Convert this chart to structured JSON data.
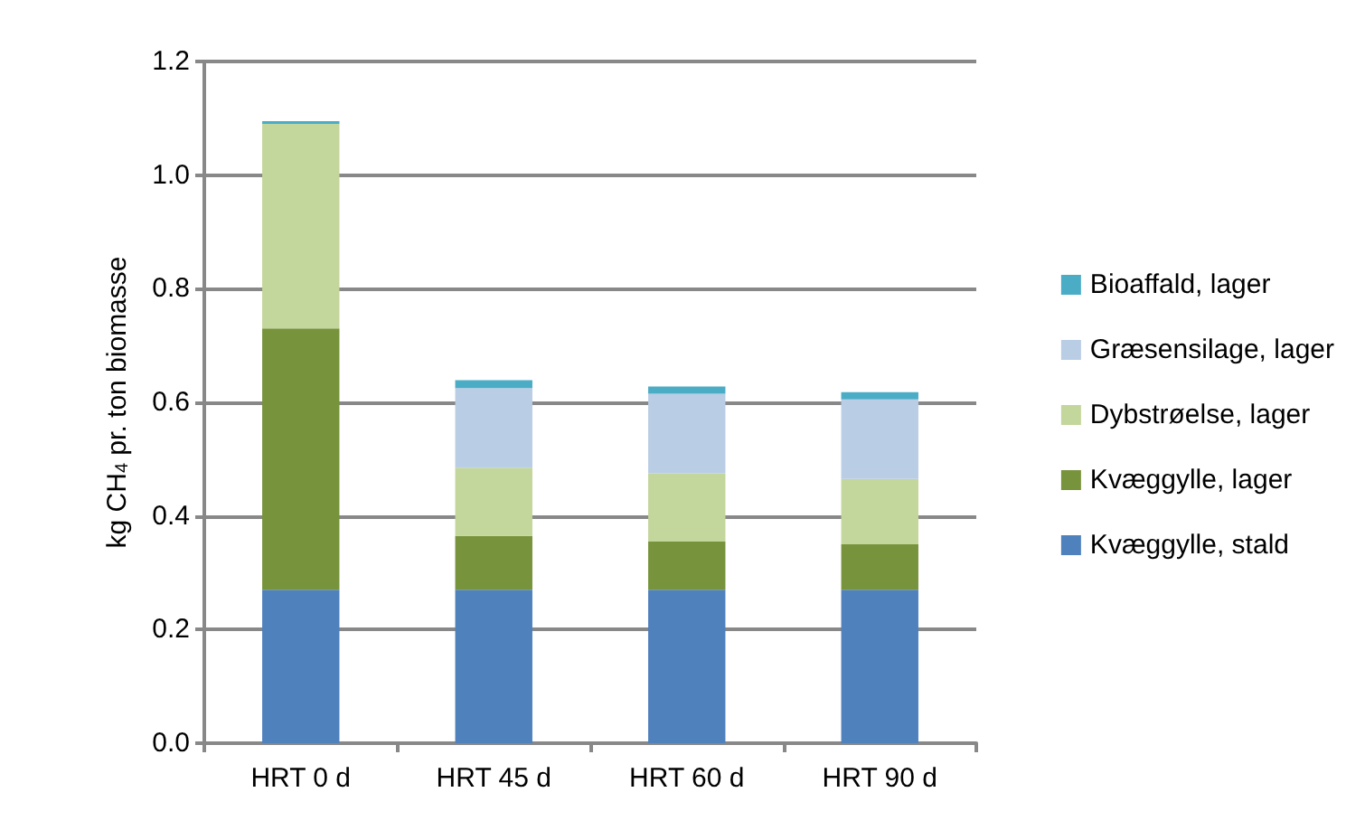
{
  "chart_data": {
    "type": "bar",
    "stacked": true,
    "ylabel": "kg CH$_{4}$ pr. ton biomasse",
    "categories": [
      "HRT 0 d",
      "HRT 45 d",
      "HRT 60 d",
      "HRT 90 d"
    ],
    "series": [
      {
        "name": "Kvæggylle, stald",
        "color": "#4f81bd",
        "values": [
          0.27,
          0.27,
          0.27,
          0.27
        ]
      },
      {
        "name": "Kvæggylle, lager",
        "color": "#77933c",
        "values": [
          0.46,
          0.095,
          0.085,
          0.08
        ]
      },
      {
        "name": "Dybstrøelse, lager",
        "color": "#c3d69b",
        "values": [
          0.36,
          0.12,
          0.12,
          0.115
        ]
      },
      {
        "name": "Græsensilage, lager",
        "color": "#b9cde5",
        "values": [
          null,
          0.14,
          0.14,
          0.14
        ]
      },
      {
        "name": "Bioaffald, lager",
        "color": "#4bacc6",
        "values": [
          0.005,
          0.014,
          0.013,
          0.013
        ]
      }
    ],
    "ylim": [
      0,
      1.2
    ],
    "yticks": [
      {
        "value": 0,
        "label": "0.0"
      },
      0.2,
      0.4,
      0.6,
      0.8,
      {
        "value": 1,
        "label": "1.0"
      },
      1.2
    ],
    "grid": "y",
    "legend": "right"
  }
}
